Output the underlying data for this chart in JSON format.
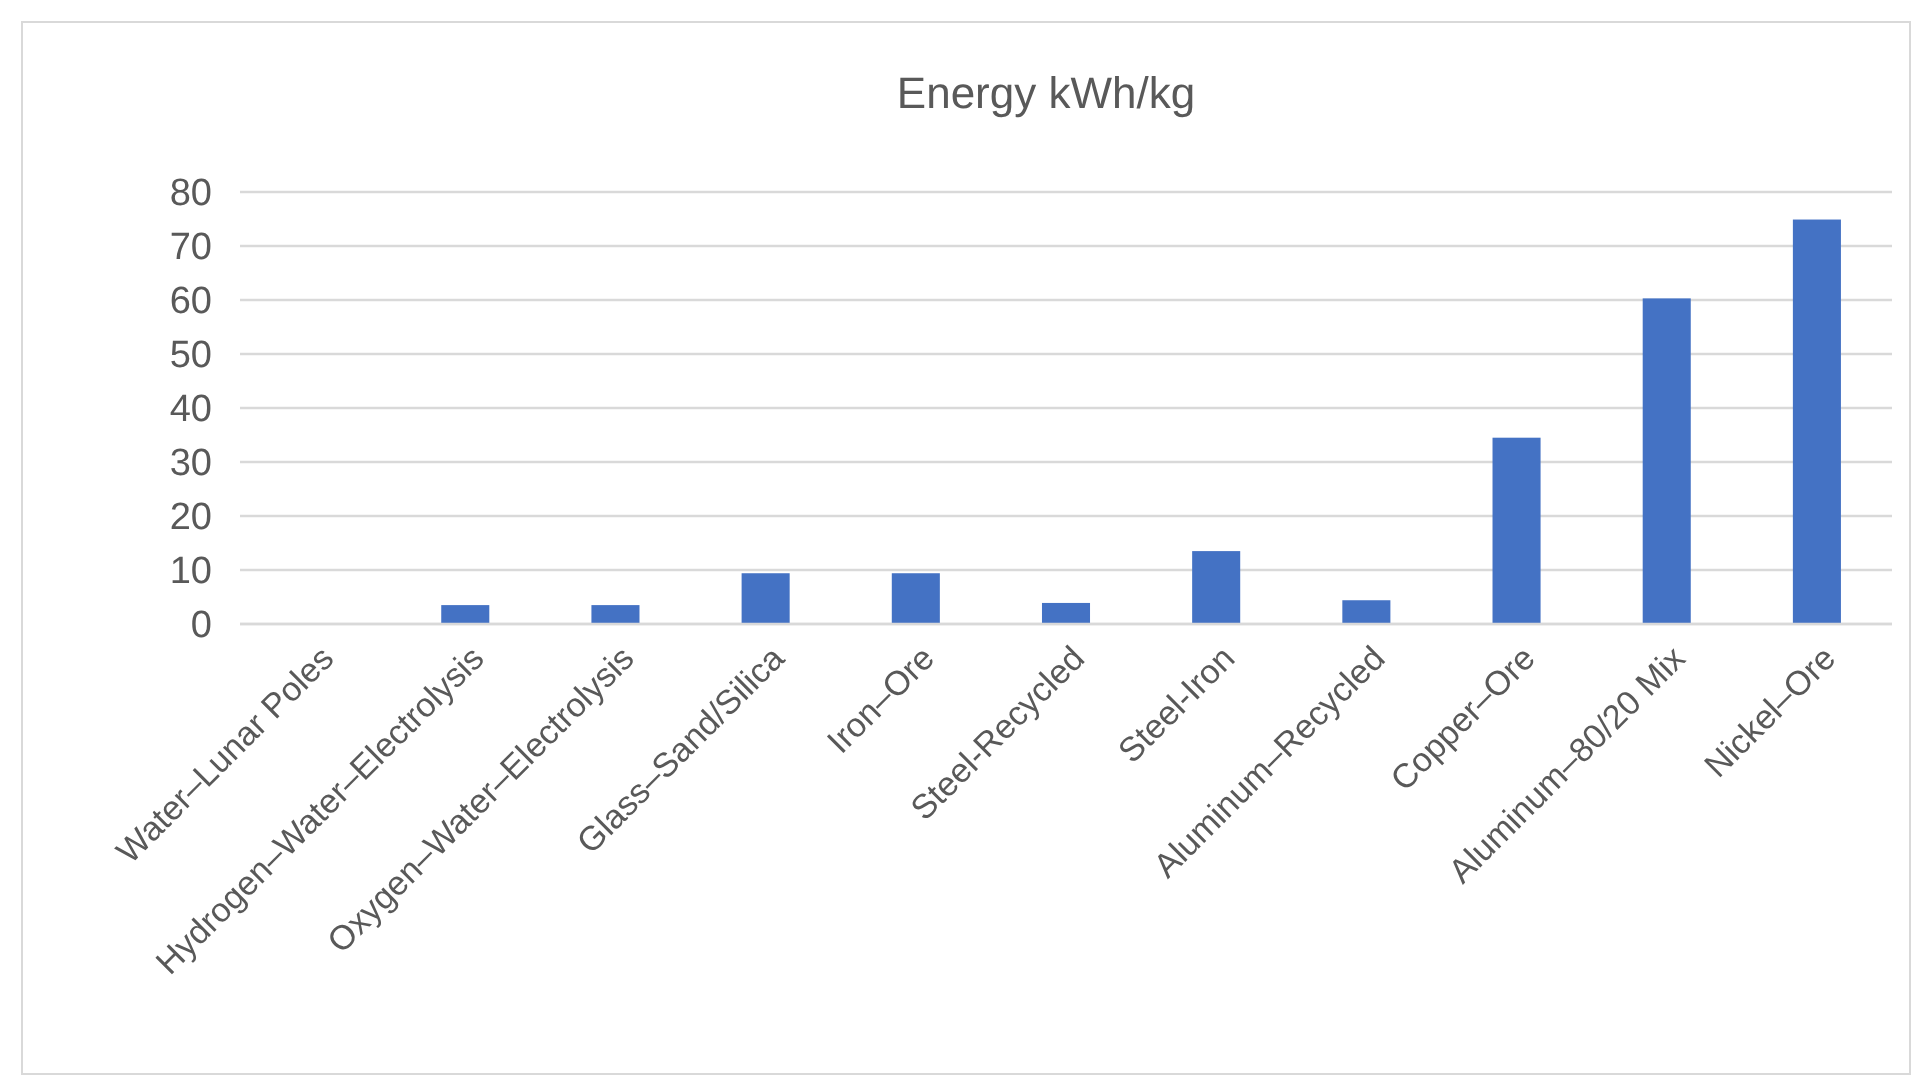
{
  "chart_data": {
    "type": "bar",
    "title": "Energy kWh/kg",
    "categories": [
      "Water–Lunar Poles",
      "Hydrogen–Water–Electrolysis",
      "Oxygen–Water–Electrolysis",
      "Glass–Sand/Silica",
      "Iron–Ore",
      "Steel-Recycled",
      "Steel-Iron",
      "Aluminum–Recycled",
      "Copper–Ore",
      "Aluminum–80/20 Mix",
      "Nickel–Ore"
    ],
    "values": [
      0,
      3.5,
      3.5,
      9.4,
      9.4,
      3.9,
      13.5,
      4.4,
      34.5,
      60.3,
      74.9
    ],
    "color": "#4472c4",
    "ylim": [
      0,
      80
    ],
    "yticks": [
      0,
      10,
      20,
      30,
      40,
      50,
      60,
      70,
      80
    ],
    "grid": "y"
  }
}
